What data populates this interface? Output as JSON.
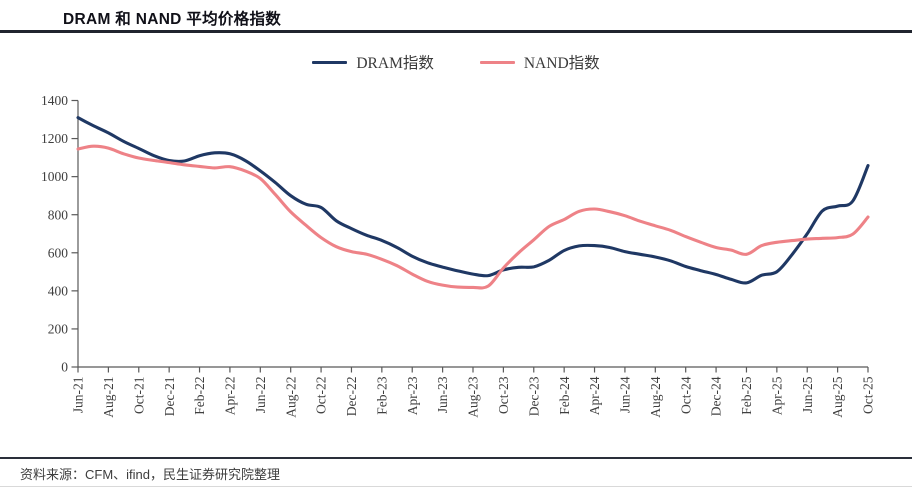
{
  "header": {
    "title": "DRAM 和 NAND 平均价格指数"
  },
  "legend": [
    {
      "label": "DRAM指数",
      "color": "#1f3864"
    },
    {
      "label": "NAND指数",
      "color": "#ee8287"
    }
  ],
  "footer": {
    "source": "资料来源：CFM、ifind，民生证券研究院整理"
  },
  "chart_data": {
    "type": "line",
    "title": "DRAM 和 NAND 平均价格指数",
    "ylabel": "",
    "xlabel": "",
    "ylim": [
      0,
      1400
    ],
    "y_ticks": [
      0,
      200,
      400,
      600,
      800,
      1000,
      1200,
      1400
    ],
    "grid": false,
    "legend_position": "top",
    "x": [
      "Jun-21",
      "Jul-21",
      "Aug-21",
      "Sep-21",
      "Oct-21",
      "Nov-21",
      "Dec-21",
      "Jan-22",
      "Feb-22",
      "Mar-22",
      "Apr-22",
      "May-22",
      "Jun-22",
      "Jul-22",
      "Aug-22",
      "Sep-22",
      "Oct-22",
      "Nov-22",
      "Dec-22",
      "Jan-23",
      "Feb-23",
      "Mar-23",
      "Apr-23",
      "May-23",
      "Jun-23",
      "Jul-23",
      "Aug-23",
      "Sep-23",
      "Oct-23",
      "Nov-23",
      "Dec-23",
      "Jan-24",
      "Feb-24",
      "Mar-24",
      "Apr-24",
      "May-24",
      "Jun-24",
      "Jul-24",
      "Aug-24",
      "Sep-24",
      "Oct-24",
      "Nov-24",
      "Dec-24",
      "Jan-25",
      "Feb-25",
      "Mar-25",
      "Apr-25",
      "May-25",
      "Jun-25",
      "Jul-25",
      "Aug-25",
      "Sep-25",
      "Oct-25"
    ],
    "x_tick_labels": [
      "Jun-21",
      "Aug-21",
      "Oct-21",
      "Dec-21",
      "Feb-22",
      "Apr-22",
      "Jun-22",
      "Aug-22",
      "Oct-22",
      "Dec-22",
      "Feb-23",
      "Apr-23",
      "Jun-23",
      "Aug-23",
      "Oct-23",
      "Dec-23",
      "Feb-24",
      "Apr-24",
      "Jun-24",
      "Aug-24",
      "Oct-24",
      "Dec-24",
      "Feb-25",
      "Apr-25",
      "Jun-25",
      "Aug-25",
      "Oct-25"
    ],
    "series": [
      {
        "name": "DRAM指数",
        "color": "#1f3864",
        "values": [
          1310,
          1268,
          1230,
          1185,
          1148,
          1110,
          1085,
          1082,
          1110,
          1125,
          1120,
          1085,
          1030,
          968,
          900,
          855,
          838,
          768,
          727,
          692,
          665,
          628,
          582,
          548,
          525,
          505,
          488,
          480,
          510,
          524,
          526,
          560,
          612,
          636,
          638,
          628,
          606,
          592,
          578,
          558,
          528,
          506,
          486,
          460,
          442,
          482,
          500,
          590,
          700,
          820,
          845,
          872,
          1058
        ]
      },
      {
        "name": "NAND指数",
        "color": "#ee8287",
        "values": [
          1145,
          1160,
          1150,
          1120,
          1098,
          1085,
          1074,
          1062,
          1054,
          1046,
          1052,
          1030,
          990,
          905,
          815,
          745,
          680,
          632,
          606,
          592,
          566,
          532,
          488,
          450,
          430,
          420,
          418,
          425,
          520,
          600,
          668,
          738,
          775,
          818,
          830,
          816,
          795,
          766,
          742,
          718,
          685,
          655,
          628,
          614,
          592,
          638,
          655,
          664,
          672,
          676,
          680,
          698,
          788
        ]
      }
    ]
  }
}
